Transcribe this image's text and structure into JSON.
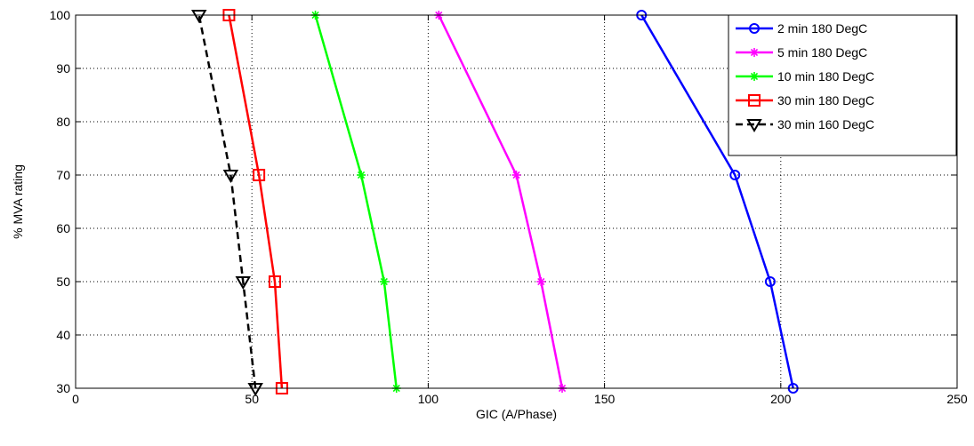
{
  "chart_data": {
    "type": "line",
    "title": "",
    "xlabel": "GIC (A/Phase)",
    "ylabel": "% MVA rating",
    "xlim": [
      0,
      250
    ],
    "ylim": [
      30,
      100
    ],
    "xticks": [
      0,
      50,
      100,
      150,
      200,
      250
    ],
    "yticks": [
      30,
      40,
      50,
      60,
      70,
      80,
      90,
      100
    ],
    "grid": true,
    "legend_position": "top-right",
    "series": [
      {
        "name": "2 min 180 DegC",
        "color": "#0000ff",
        "marker": "circle",
        "dash": false,
        "x": [
          203.5,
          197,
          187,
          160.5
        ],
        "y": [
          30,
          50,
          70,
          100
        ]
      },
      {
        "name": "5 min 180 DegC",
        "color": "#ff00ff",
        "marker": "star",
        "dash": false,
        "x": [
          138,
          132,
          125,
          103
        ],
        "y": [
          30,
          50,
          70,
          100
        ]
      },
      {
        "name": "10 min 180 DegC",
        "color": "#00ff00",
        "marker": "star",
        "dash": false,
        "x": [
          91,
          87.5,
          81,
          68
        ],
        "y": [
          30,
          50,
          70,
          100
        ]
      },
      {
        "name": "30 min 180 DegC",
        "color": "#ff0000",
        "marker": "square",
        "dash": false,
        "x": [
          58.5,
          56.5,
          52,
          43.5
        ],
        "y": [
          30,
          50,
          70,
          100
        ]
      },
      {
        "name": "30 min 160 DegC",
        "color": "#000000",
        "marker": "triangle-down",
        "dash": true,
        "x": [
          51,
          47.5,
          44,
          35
        ],
        "y": [
          30,
          50,
          70,
          100
        ]
      }
    ]
  }
}
